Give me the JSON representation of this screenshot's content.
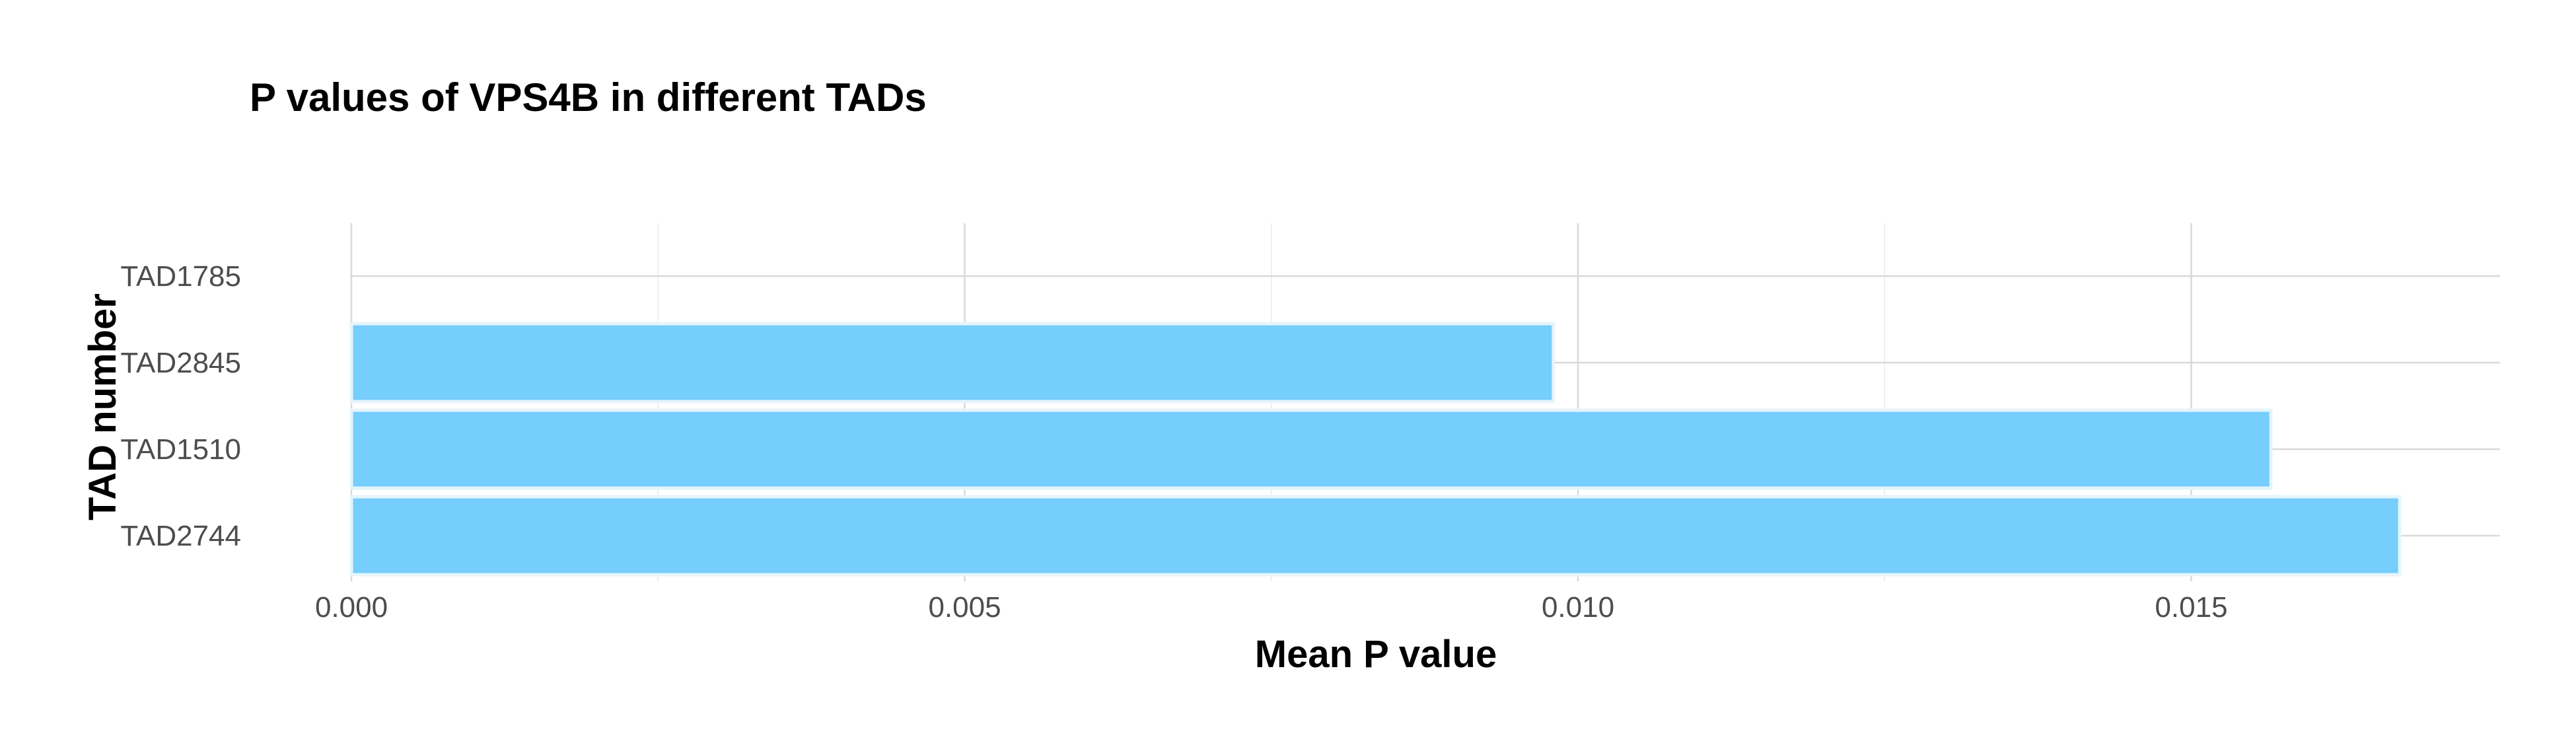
{
  "chart_data": {
    "type": "bar",
    "orientation": "horizontal",
    "title": "P values of VPS4B in different TADs",
    "xlabel": "Mean P value",
    "ylabel": "TAD number",
    "categories": [
      "TAD2744",
      "TAD1510",
      "TAD2845",
      "TAD1785"
    ],
    "values": [
      0.0167,
      0.01565,
      0.0098,
      null
    ],
    "xlim": [
      0,
      0.0175
    ],
    "x_ticks": [
      0.0,
      0.005,
      0.01,
      0.015
    ],
    "x_tick_labels": [
      "0.000",
      "0.005",
      "0.010",
      "0.015"
    ],
    "x_minor_ticks": [
      0.0025,
      0.0075,
      0.0125
    ],
    "grid": true,
    "legend": "none",
    "colors": {
      "bar_fill": "#75cefc",
      "bar_outline": "#e6f4fb",
      "grid_major": "#d9d9d9",
      "grid_minor": "#ebebeb",
      "tick_text": "#4d4d4d",
      "title_text": "#000000"
    }
  }
}
